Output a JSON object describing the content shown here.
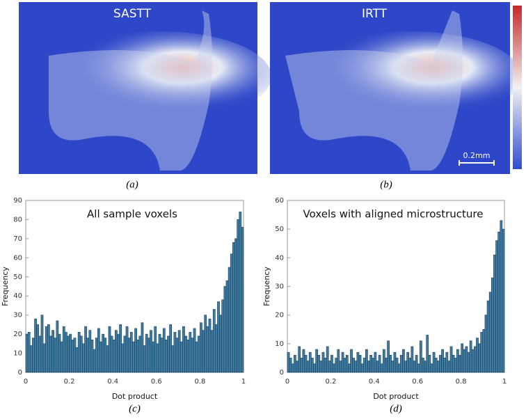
{
  "figure": {
    "panels": [
      {
        "title": "SASTT",
        "caption": "(a)"
      },
      {
        "title": "IRTT",
        "caption": "(b)"
      }
    ],
    "scale_bar": "0.2mm"
  },
  "chart_data": [
    {
      "type": "histogram",
      "title": "All sample voxels",
      "caption": "(c)",
      "xlabel": "Dot product",
      "ylabel": "Frequency",
      "color": "#3f7ca3",
      "bins": [
        0,
        0.01,
        0.02,
        0.03,
        0.04,
        0.05,
        0.06,
        0.07,
        0.08,
        0.09,
        0.1,
        0.11,
        0.12,
        0.13,
        0.14,
        0.15,
        0.16,
        0.17,
        0.18,
        0.19,
        0.2,
        0.21,
        0.22,
        0.23,
        0.24,
        0.25,
        0.26,
        0.27,
        0.28,
        0.29,
        0.3,
        0.31,
        0.32,
        0.33,
        0.34,
        0.35,
        0.36,
        0.37,
        0.38,
        0.39,
        0.4,
        0.41,
        0.42,
        0.43,
        0.44,
        0.45,
        0.46,
        0.47,
        0.48,
        0.49,
        0.5,
        0.51,
        0.52,
        0.53,
        0.54,
        0.55,
        0.56,
        0.57,
        0.58,
        0.59,
        0.6,
        0.61,
        0.62,
        0.63,
        0.64,
        0.65,
        0.66,
        0.67,
        0.68,
        0.69,
        0.7,
        0.71,
        0.72,
        0.73,
        0.74,
        0.75,
        0.76,
        0.77,
        0.78,
        0.79,
        0.8,
        0.81,
        0.82,
        0.83,
        0.84,
        0.85,
        0.86,
        0.87,
        0.88,
        0.89,
        0.9,
        0.91,
        0.92,
        0.93,
        0.94,
        0.95,
        0.96,
        0.97,
        0.98,
        0.99,
        1
      ],
      "values": [
        20,
        21,
        14,
        18,
        28,
        25,
        19,
        30,
        15,
        24,
        25,
        19,
        22,
        18,
        27,
        20,
        16,
        24,
        21,
        19,
        20,
        17,
        18,
        13,
        21,
        19,
        15,
        24,
        18,
        22,
        17,
        12,
        18,
        23,
        16,
        20,
        18,
        14,
        24,
        19,
        17,
        22,
        20,
        25,
        15,
        19,
        24,
        18,
        21,
        16,
        23,
        17,
        19,
        26,
        14,
        20,
        18,
        22,
        16,
        24,
        15,
        20,
        18,
        23,
        17,
        19,
        25,
        14,
        21,
        18,
        22,
        16,
        24,
        19,
        17,
        21,
        18,
        23,
        16,
        19,
        26,
        22,
        30,
        24,
        28,
        22,
        33,
        25,
        37,
        30,
        38,
        45,
        48,
        55,
        62,
        68,
        70,
        80,
        84,
        76
      ],
      "xlim": [
        0,
        1
      ],
      "xticks": [
        0,
        0.2,
        0.4,
        0.6,
        0.8,
        1
      ],
      "ylim": [
        0,
        90
      ],
      "yticks": [
        0,
        10,
        20,
        30,
        40,
        50,
        60,
        70,
        80,
        90
      ]
    },
    {
      "type": "histogram",
      "title": "Voxels with aligned microstructure",
      "caption": "(d)",
      "xlabel": "Dot product",
      "ylabel": "Frequency",
      "color": "#3f7ca3",
      "bins": [
        0,
        0.01,
        0.02,
        0.03,
        0.04,
        0.05,
        0.06,
        0.07,
        0.08,
        0.09,
        0.1,
        0.11,
        0.12,
        0.13,
        0.14,
        0.15,
        0.16,
        0.17,
        0.18,
        0.19,
        0.2,
        0.21,
        0.22,
        0.23,
        0.24,
        0.25,
        0.26,
        0.27,
        0.28,
        0.29,
        0.3,
        0.31,
        0.32,
        0.33,
        0.34,
        0.35,
        0.36,
        0.37,
        0.38,
        0.39,
        0.4,
        0.41,
        0.42,
        0.43,
        0.44,
        0.45,
        0.46,
        0.47,
        0.48,
        0.49,
        0.5,
        0.51,
        0.52,
        0.53,
        0.54,
        0.55,
        0.56,
        0.57,
        0.58,
        0.59,
        0.6,
        0.61,
        0.62,
        0.63,
        0.64,
        0.65,
        0.66,
        0.67,
        0.68,
        0.69,
        0.7,
        0.71,
        0.72,
        0.73,
        0.74,
        0.75,
        0.76,
        0.77,
        0.78,
        0.79,
        0.8,
        0.81,
        0.82,
        0.83,
        0.84,
        0.85,
        0.86,
        0.87,
        0.88,
        0.89,
        0.9,
        0.91,
        0.92,
        0.93,
        0.94,
        0.95,
        0.96,
        0.97,
        0.98,
        0.99,
        1
      ],
      "values": [
        7,
        5,
        3,
        6,
        4,
        9,
        5,
        8,
        6,
        4,
        7,
        5,
        3,
        8,
        6,
        4,
        7,
        5,
        9,
        4,
        6,
        3,
        5,
        8,
        4,
        7,
        5,
        6,
        3,
        8,
        5,
        4,
        7,
        6,
        3,
        5,
        8,
        4,
        6,
        5,
        7,
        4,
        6,
        3,
        8,
        5,
        11,
        6,
        4,
        7,
        5,
        3,
        6,
        8,
        4,
        7,
        5,
        9,
        4,
        6,
        3,
        11,
        5,
        4,
        13,
        6,
        3,
        7,
        5,
        4,
        6,
        8,
        5,
        7,
        4,
        9,
        6,
        5,
        8,
        6,
        10,
        8,
        9,
        7,
        11,
        8,
        9,
        12,
        10,
        14,
        15,
        20,
        25,
        28,
        33,
        41,
        46,
        49,
        53,
        50
      ],
      "xlim": [
        0,
        1
      ],
      "xticks": [
        0,
        0.2,
        0.4,
        0.6,
        0.8,
        1
      ],
      "ylim": [
        0,
        60
      ],
      "yticks": [
        0,
        10,
        20,
        30,
        40,
        50,
        60
      ]
    }
  ]
}
